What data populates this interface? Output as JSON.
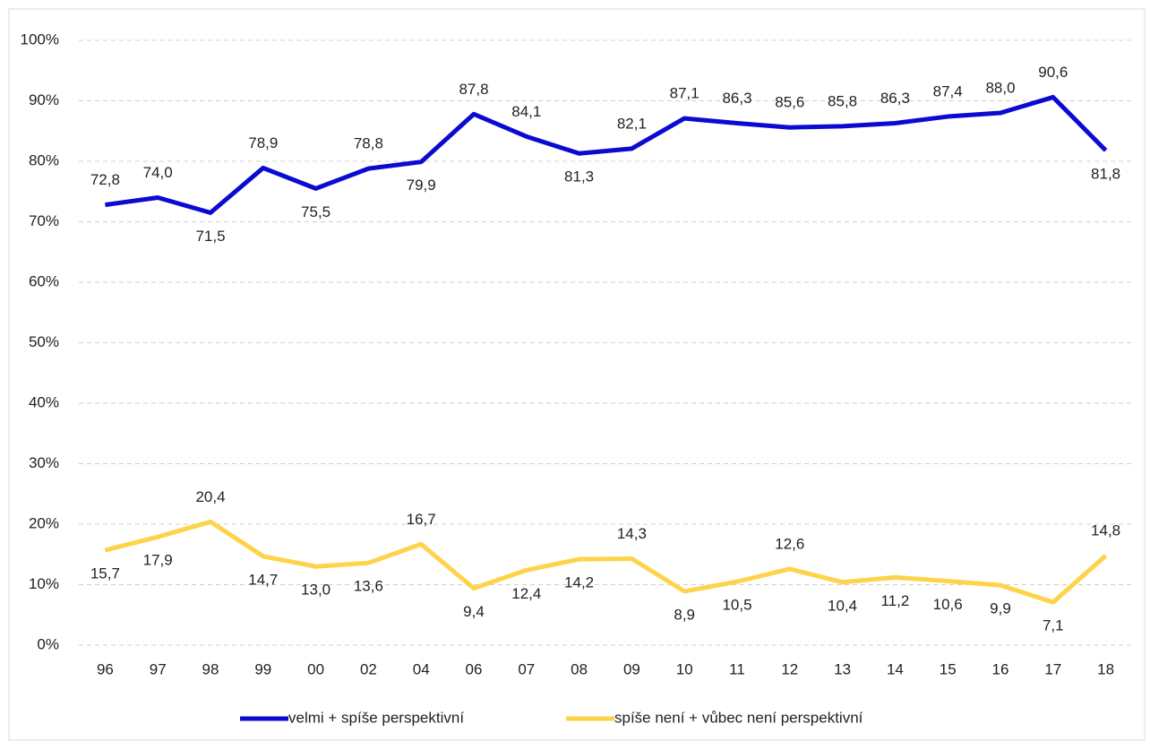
{
  "chart_data": {
    "type": "line",
    "categories": [
      "96",
      "97",
      "98",
      "99",
      "00",
      "02",
      "04",
      "06",
      "07",
      "08",
      "09",
      "10",
      "11",
      "12",
      "13",
      "14",
      "15",
      "16",
      "17",
      "18"
    ],
    "series": [
      {
        "name": "velmi + spíše perspektivní",
        "color": "#0a0ad2",
        "values": [
          72.8,
          74.0,
          71.5,
          78.9,
          75.5,
          78.8,
          79.9,
          87.8,
          84.1,
          81.3,
          82.1,
          87.1,
          86.3,
          85.6,
          85.8,
          86.3,
          87.4,
          88.0,
          90.6,
          81.8
        ],
        "value_labels": [
          "72,8",
          "74,0",
          "71,5",
          "78,9",
          "75,5",
          "78,8",
          "79,9",
          "87,8",
          "84,1",
          "81,3",
          "82,1",
          "87,1",
          "86,3",
          "85,6",
          "85,8",
          "86,3",
          "87,4",
          "88,0",
          "90,6",
          "81,8"
        ]
      },
      {
        "name": "spíše není + vůbec není perspektivní",
        "color": "#fdd34a",
        "values": [
          15.7,
          17.9,
          20.4,
          14.7,
          13.0,
          13.6,
          16.7,
          9.4,
          12.4,
          14.2,
          14.3,
          8.9,
          10.5,
          12.6,
          10.4,
          11.2,
          10.6,
          9.9,
          7.1,
          14.8
        ],
        "value_labels": [
          "15,7",
          "17,9",
          "20,4",
          "14,7",
          "13,0",
          "13,6",
          "16,7",
          "9,4",
          "12,4",
          "14,2",
          "14,3",
          "8,9",
          "10,5",
          "12,6",
          "10,4",
          "11,2",
          "10,6",
          "9,9",
          "7,1",
          "14,8"
        ]
      }
    ],
    "ylim": [
      0,
      100
    ],
    "yticks": [
      {
        "value": 0,
        "label": "0%"
      },
      {
        "value": 10,
        "label": "10%"
      },
      {
        "value": 20,
        "label": "20%"
      },
      {
        "value": 30,
        "label": "30%"
      },
      {
        "value": 40,
        "label": "40%"
      },
      {
        "value": 50,
        "label": "50%"
      },
      {
        "value": 60,
        "label": "60%"
      },
      {
        "value": 70,
        "label": "70%"
      },
      {
        "value": 80,
        "label": "80%"
      },
      {
        "value": 90,
        "label": "90%"
      },
      {
        "value": 100,
        "label": "100%"
      }
    ],
    "grid": true,
    "legend": "bottom"
  }
}
